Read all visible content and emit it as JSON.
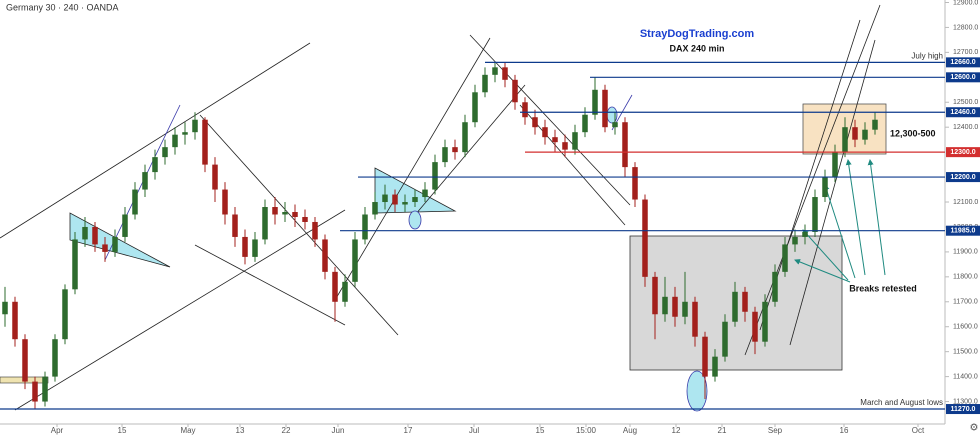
{
  "header": "Germany 30 · 240 · OANDA",
  "chart_data": {
    "type": "candlestick",
    "title": "StrayDogTrading.com",
    "subtitle": "DAX 240 min",
    "annotations": [
      "12,300-500",
      "Breaks retested"
    ],
    "up_color": "#2e6b2e",
    "down_color": "#a3201c",
    "x": [
      0,
      1,
      2,
      3,
      4,
      5,
      6,
      7,
      8,
      9,
      10,
      11,
      12,
      13,
      14,
      15,
      16,
      17,
      18,
      19,
      20,
      21,
      22,
      23,
      24,
      25,
      26,
      27,
      28,
      29,
      30,
      31,
      32,
      33,
      34,
      35,
      36,
      37,
      38,
      39,
      40,
      41,
      42,
      43,
      44,
      45,
      46,
      47,
      48,
      49,
      50,
      51,
      52,
      53,
      54,
      55,
      56,
      57,
      58,
      59,
      60,
      61,
      62,
      63,
      64,
      65,
      66,
      67,
      68,
      69,
      70,
      71,
      72,
      73,
      74,
      75,
      76,
      77,
      78,
      79,
      80,
      81,
      82,
      83,
      84,
      85,
      86,
      87
    ],
    "open": [
      11650,
      11700,
      11550,
      11380,
      11300,
      11400,
      11550,
      11750,
      11950,
      12000,
      11930,
      11900,
      11960,
      12050,
      12150,
      12220,
      12280,
      12320,
      12370,
      12380,
      12430,
      12250,
      12150,
      12050,
      11960,
      11880,
      11950,
      12080,
      12050,
      12060,
      12040,
      12020,
      11950,
      11820,
      11700,
      11780,
      11950,
      12050,
      12100,
      12130,
      12090,
      12100,
      12120,
      12150,
      12260,
      12320,
      12300,
      12420,
      12540,
      12610,
      12640,
      12590,
      12500,
      12440,
      12400,
      12360,
      12340,
      12310,
      12380,
      12450,
      12550,
      12400,
      12420,
      12240,
      12110,
      11800,
      11650,
      11720,
      11640,
      11700,
      11560,
      11400,
      11480,
      11620,
      11740,
      11660,
      11540,
      11700,
      11820,
      11930,
      11960,
      11980,
      12120,
      12200,
      12300,
      12400,
      12350,
      12390
    ],
    "high": [
      11760,
      11720,
      11570,
      11400,
      11420,
      11570,
      11770,
      11980,
      12040,
      12020,
      11960,
      11990,
      12080,
      12180,
      12250,
      12310,
      12350,
      12400,
      12420,
      12460,
      12440,
      12280,
      12180,
      12080,
      11990,
      11980,
      12110,
      12120,
      12100,
      12090,
      12070,
      12040,
      11970,
      11840,
      11810,
      11980,
      12080,
      12140,
      12170,
      12150,
      12130,
      12150,
      12180,
      12290,
      12350,
      12350,
      12450,
      12570,
      12640,
      12660,
      12660,
      12610,
      12520,
      12470,
      12430,
      12390,
      12370,
      12410,
      12480,
      12600,
      12570,
      12460,
      12440,
      12260,
      12130,
      11820,
      11800,
      11760,
      11820,
      11720,
      11580,
      11510,
      11650,
      11780,
      11760,
      11680,
      11730,
      11850,
      11960,
      11990,
      12010,
      12150,
      12230,
      12330,
      12440,
      12430,
      12420,
      12460
    ],
    "low": [
      11600,
      11520,
      11350,
      11270,
      11280,
      11380,
      11530,
      11730,
      11920,
      11900,
      11860,
      11880,
      11940,
      12030,
      12120,
      12190,
      12250,
      12290,
      12330,
      12350,
      12220,
      12100,
      12010,
      11920,
      11850,
      11860,
      11930,
      12010,
      12020,
      12000,
      11990,
      11920,
      11790,
      11620,
      11680,
      11760,
      11930,
      12030,
      12070,
      12060,
      12060,
      12080,
      12100,
      12130,
      12240,
      12270,
      12280,
      12400,
      12520,
      12580,
      12560,
      12470,
      12410,
      12370,
      12330,
      12300,
      12280,
      12290,
      12360,
      12430,
      12380,
      12370,
      12200,
      12080,
      11760,
      11550,
      11620,
      11600,
      11610,
      11520,
      11310,
      11380,
      11460,
      11600,
      11620,
      11490,
      11520,
      11680,
      11800,
      11900,
      11930,
      11960,
      12100,
      12180,
      12280,
      12320,
      12330,
      12370
    ],
    "close": [
      11700,
      11550,
      11380,
      11300,
      11400,
      11550,
      11750,
      11950,
      12000,
      11930,
      11900,
      11960,
      12050,
      12150,
      12220,
      12280,
      12320,
      12370,
      12380,
      12430,
      12250,
      12150,
      12050,
      11960,
      11880,
      11950,
      12080,
      12050,
      12060,
      12040,
      12020,
      11950,
      11820,
      11700,
      11780,
      11950,
      12050,
      12100,
      12130,
      12090,
      12100,
      12120,
      12150,
      12260,
      12320,
      12300,
      12420,
      12540,
      12610,
      12640,
      12590,
      12500,
      12440,
      12400,
      12360,
      12340,
      12310,
      12380,
      12450,
      12550,
      12400,
      12420,
      12240,
      12110,
      11800,
      11650,
      11720,
      11640,
      11700,
      11560,
      11400,
      11480,
      11620,
      11740,
      11660,
      11540,
      11700,
      11820,
      11930,
      11960,
      11980,
      12120,
      12200,
      12300,
      12400,
      12350,
      12390,
      12430
    ],
    "xlim": [
      -0.5,
      94
    ],
    "xticks": [
      {
        "value": 5.2,
        "label": "Apr"
      },
      {
        "value": 11.7,
        "label": "15"
      },
      {
        "value": 18.3,
        "label": "May"
      },
      {
        "value": 23.5,
        "label": "13"
      },
      {
        "value": 28.1,
        "label": "22"
      },
      {
        "value": 33.3,
        "label": "Jun"
      },
      {
        "value": 40.3,
        "label": "17"
      },
      {
        "value": 46.9,
        "label": "Jul"
      },
      {
        "value": 53.5,
        "label": "15"
      },
      {
        "value": 58.1,
        "label": "15:00"
      },
      {
        "value": 62.5,
        "label": "Aug"
      },
      {
        "value": 67.1,
        "label": "12"
      },
      {
        "value": 71.7,
        "label": "21"
      },
      {
        "value": 77,
        "label": "Sep"
      },
      {
        "value": 83.9,
        "label": "16"
      },
      {
        "value": 91.3,
        "label": "Oct"
      }
    ],
    "ylim": [
      11210,
      12910
    ],
    "yticks": [
      {
        "value": 11300,
        "label": "11300.0"
      },
      {
        "value": 11400,
        "label": "11400.0"
      },
      {
        "value": 11500,
        "label": "11500.0"
      },
      {
        "value": 11600,
        "label": "11600.0"
      },
      {
        "value": 11700,
        "label": "11700.0"
      },
      {
        "value": 11800,
        "label": "11800.0"
      },
      {
        "value": 11900,
        "label": "11900.0"
      },
      {
        "value": 12000,
        "label": "12000.0"
      },
      {
        "value": 12100,
        "label": "12100.0"
      },
      {
        "value": 12400,
        "label": "12400.0"
      },
      {
        "value": 12500,
        "label": "12500.0"
      },
      {
        "value": 12700,
        "label": "12700.0"
      },
      {
        "value": 12800,
        "label": "12800.0"
      },
      {
        "value": 12900,
        "label": "12900.0"
      }
    ],
    "levels": [
      {
        "value": 12660,
        "label": "12660.0",
        "x0": 48,
        "color": "#0d3a8c",
        "note": "July high"
      },
      {
        "value": 12600,
        "label": "12600.0",
        "x0": 58.5,
        "color": "#0d3a8c"
      },
      {
        "value": 12460,
        "label": "12460.0",
        "x0": 51.5,
        "color": "#0d3a8c"
      },
      {
        "value": 12300,
        "label": "12300.0",
        "x0": 52,
        "color": "#d32f2f"
      },
      {
        "value": 12200,
        "label": "12200.0",
        "x0": 35.3,
        "color": "#0d3a8c"
      },
      {
        "value": 11985,
        "label": "11985.0",
        "x0": 33.5,
        "color": "#0d3a8c"
      },
      {
        "value": 11270,
        "label": "11270.0",
        "x0": -0.5,
        "color": "#0d3a8c",
        "note": "March and August lows"
      }
    ]
  }
}
